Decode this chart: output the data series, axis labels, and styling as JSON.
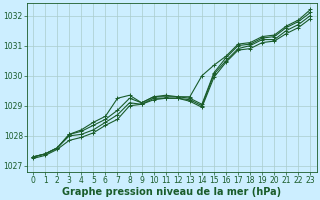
{
  "xlabel": "Graphe pression niveau de la mer (hPa)",
  "ylim": [
    1026.8,
    1032.4
  ],
  "xlim": [
    -0.5,
    23.5
  ],
  "yticks": [
    1027,
    1028,
    1029,
    1030,
    1031,
    1032
  ],
  "xticks": [
    0,
    1,
    2,
    3,
    4,
    5,
    6,
    7,
    8,
    9,
    10,
    11,
    12,
    13,
    14,
    15,
    16,
    17,
    18,
    19,
    20,
    21,
    22,
    23
  ],
  "background_color": "#cceeff",
  "grid_color": "#aacccc",
  "line_color": "#1a5c2a",
  "series": [
    [
      1027.25,
      1027.35,
      1027.55,
      1027.85,
      1027.95,
      1028.1,
      1028.35,
      1028.55,
      1029.0,
      1029.05,
      1029.2,
      1029.25,
      1029.25,
      1029.15,
      1028.95,
      1029.95,
      1030.45,
      1030.85,
      1030.9,
      1031.1,
      1031.15,
      1031.4,
      1031.6,
      1031.9
    ],
    [
      1027.3,
      1027.4,
      1027.6,
      1028.0,
      1028.05,
      1028.2,
      1028.45,
      1028.7,
      1029.1,
      1029.05,
      1029.25,
      1029.25,
      1029.25,
      1029.2,
      1029.0,
      1030.05,
      1030.5,
      1030.9,
      1031.0,
      1031.2,
      1031.2,
      1031.5,
      1031.7,
      1032.0
    ],
    [
      1027.3,
      1027.4,
      1027.6,
      1028.05,
      1028.15,
      1028.35,
      1028.55,
      1028.85,
      1029.25,
      1029.1,
      1029.3,
      1029.3,
      1029.3,
      1029.25,
      1029.05,
      1030.1,
      1030.6,
      1031.0,
      1031.05,
      1031.25,
      1031.3,
      1031.6,
      1031.8,
      1032.1
    ],
    [
      1027.3,
      1027.4,
      1027.6,
      1028.05,
      1028.2,
      1028.45,
      1028.65,
      1029.25,
      1029.35,
      1029.1,
      1029.3,
      1029.35,
      1029.3,
      1029.3,
      1030.0,
      1030.35,
      1030.65,
      1031.05,
      1031.1,
      1031.3,
      1031.35,
      1031.65,
      1031.85,
      1032.2
    ]
  ],
  "marker": "+",
  "markersize": 3,
  "linewidth": 0.8,
  "font_color": "#1a5c2a",
  "tick_fontsize": 5.5,
  "xlabel_fontsize": 7.0
}
